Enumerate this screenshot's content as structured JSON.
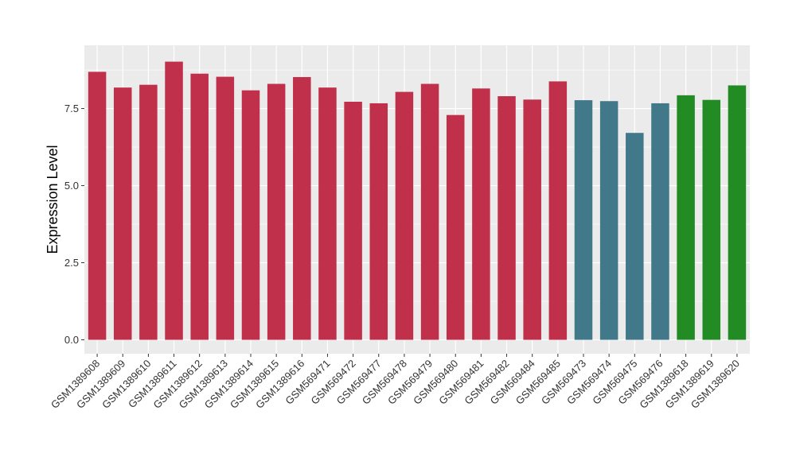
{
  "chart_data": {
    "type": "bar",
    "title": "",
    "xlabel": "",
    "ylabel": "Expression Level",
    "ylim": [
      -0.45,
      9.55
    ],
    "yticks": [
      0.0,
      2.5,
      5.0,
      7.5
    ],
    "ytick_labels": [
      "0.0",
      "2.5",
      "5.0",
      "7.5"
    ],
    "grid": true,
    "legend": "none",
    "background": "#ebebeb",
    "gridline_color": "#ffffff",
    "categories": [
      "GSM1389608",
      "GSM1389609",
      "GSM1389610",
      "GSM1389611",
      "GSM1389612",
      "GSM1389613",
      "GSM1389614",
      "GSM1389615",
      "GSM1389616",
      "GSM569471",
      "GSM569472",
      "GSM569477",
      "GSM569478",
      "GSM569479",
      "GSM569480",
      "GSM569481",
      "GSM569482",
      "GSM569484",
      "GSM569485",
      "GSM569473",
      "GSM569474",
      "GSM569475",
      "GSM569476",
      "GSM1389618",
      "GSM1389619",
      "GSM1389620"
    ],
    "values": [
      8.69,
      8.18,
      8.27,
      9.02,
      8.63,
      8.53,
      8.09,
      8.3,
      8.52,
      8.18,
      7.72,
      7.67,
      8.04,
      8.3,
      7.29,
      8.15,
      7.9,
      7.79,
      8.38,
      7.77,
      7.74,
      6.71,
      7.67,
      7.93,
      7.78,
      8.25
    ],
    "colors": [
      "#c0304a",
      "#c0304a",
      "#c0304a",
      "#c0304a",
      "#c0304a",
      "#c0304a",
      "#c0304a",
      "#c0304a",
      "#c0304a",
      "#c0304a",
      "#c0304a",
      "#c0304a",
      "#c0304a",
      "#c0304a",
      "#c0304a",
      "#c0304a",
      "#c0304a",
      "#c0304a",
      "#c0304a",
      "#41788a",
      "#41788a",
      "#41788a",
      "#41788a",
      "#238b24",
      "#238b24",
      "#238b24"
    ]
  }
}
